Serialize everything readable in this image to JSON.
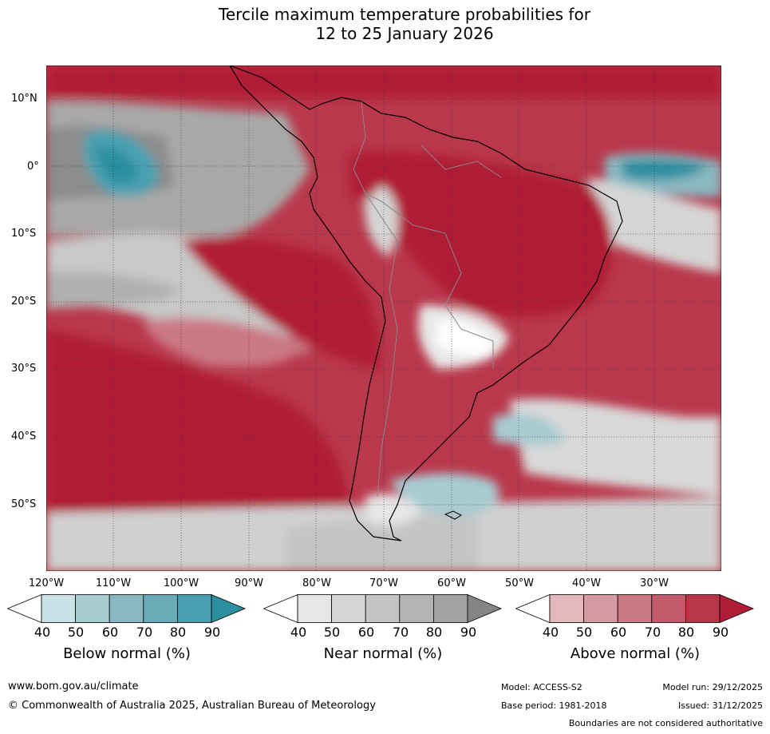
{
  "title": {
    "line1": "Tercile maximum temperature probabilities for",
    "line2": "12 to 25 January 2026"
  },
  "map": {
    "lat_labels": [
      "10°N",
      "0°",
      "10°S",
      "20°S",
      "30°S",
      "40°S",
      "50°S"
    ],
    "lon_labels": [
      "120°W",
      "110°W",
      "100°W",
      "90°W",
      "80°W",
      "70°W",
      "60°W",
      "50°W",
      "40°W",
      "30°W"
    ]
  },
  "legend": {
    "ticks": [
      "40",
      "50",
      "60",
      "70",
      "80",
      "90"
    ],
    "below": {
      "label": "Below normal (%)",
      "colors": [
        "#ffffff",
        "#c9e2e8",
        "#a8cbd2",
        "#89b8c1",
        "#6aaab6",
        "#4aa0b0",
        "#2c8fa0"
      ]
    },
    "near": {
      "label": "Near normal (%)",
      "colors": [
        "#ffffff",
        "#e6e6e6",
        "#d5d5d5",
        "#c4c4c4",
        "#b4b4b4",
        "#a3a3a3",
        "#858585"
      ]
    },
    "above": {
      "label": "Above normal (%)",
      "colors": [
        "#ffffff",
        "#e2b8bd",
        "#d69aa2",
        "#cb7885",
        "#c25a6a",
        "#b93648",
        "#b01c36"
      ]
    }
  },
  "footer": {
    "url": "www.bom.gov.au/climate",
    "copyright": "© Commonwealth of Australia 2025, Australian Bureau of Meteorology",
    "model": "Model: ACCESS-S2",
    "base_period": "Base period: 1981-2018",
    "model_run": "Model run: 29/12/2025",
    "issued": "Issued: 31/12/2025",
    "disclaimer": "Boundaries are not considered authoritative"
  }
}
